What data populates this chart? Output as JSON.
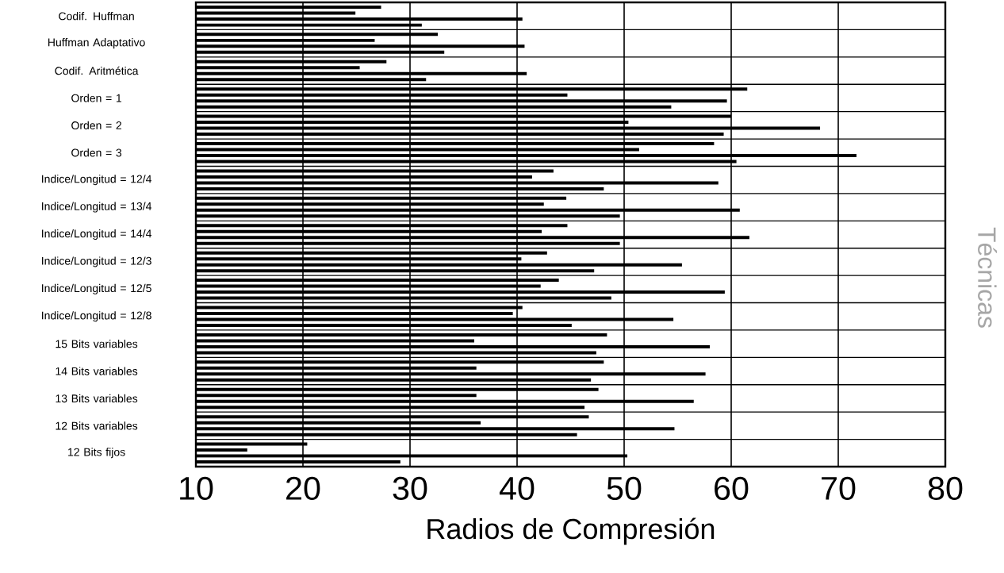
{
  "chart_data": {
    "type": "bar",
    "orientation": "horizontal",
    "xlabel": "Radios de Compresión",
    "categories": [
      "Codif. Huffman",
      "Huffman Adaptativo",
      "Codif. Aritmética",
      "Orden = 1",
      "Orden = 2",
      "Orden = 3",
      "Indice/Longitud = 12/4",
      "Indice/Longitud = 13/4",
      "Indice/Longitud = 14/4",
      "Indice/Longitud = 12/3",
      "Indice/Longitud = 12/5",
      "Indice/Longitud = 12/8",
      "15 Bits variables",
      "14 Bits variables",
      "13 Bits variables",
      "12 Bits variables",
      "12 Bits fijos"
    ],
    "series": [
      {
        "color": "#000000",
        "values": [
          27.3,
          32.6,
          27.8,
          61.5,
          60.0,
          58.4,
          43.4,
          44.6,
          44.7,
          42.8,
          43.9,
          40.5,
          48.4,
          48.1,
          47.6,
          46.7,
          20.4
        ]
      },
      {
        "color": "#000000",
        "values": [
          24.9,
          26.7,
          25.3,
          44.7,
          50.4,
          51.4,
          41.4,
          42.5,
          42.3,
          40.4,
          42.2,
          39.6,
          36.0,
          36.2,
          36.2,
          36.6,
          14.8
        ]
      },
      {
        "color": "#000000",
        "values": [
          40.5,
          40.7,
          40.9,
          59.6,
          68.3,
          71.7,
          58.8,
          60.8,
          61.7,
          55.4,
          59.4,
          54.6,
          58.0,
          57.6,
          56.5,
          54.7,
          50.3
        ]
      },
      {
        "color": "#000000",
        "values": [
          31.1,
          33.2,
          31.5,
          54.4,
          59.3,
          60.5,
          48.1,
          49.6,
          49.6,
          47.2,
          48.8,
          45.1,
          47.4,
          46.9,
          46.3,
          45.6,
          29.1
        ]
      }
    ],
    "xlim": [
      10,
      80
    ],
    "xticks": [
      10,
      20,
      30,
      40,
      50,
      60,
      70,
      80
    ],
    "grid": true,
    "annotations": [
      "Técnicas"
    ]
  }
}
